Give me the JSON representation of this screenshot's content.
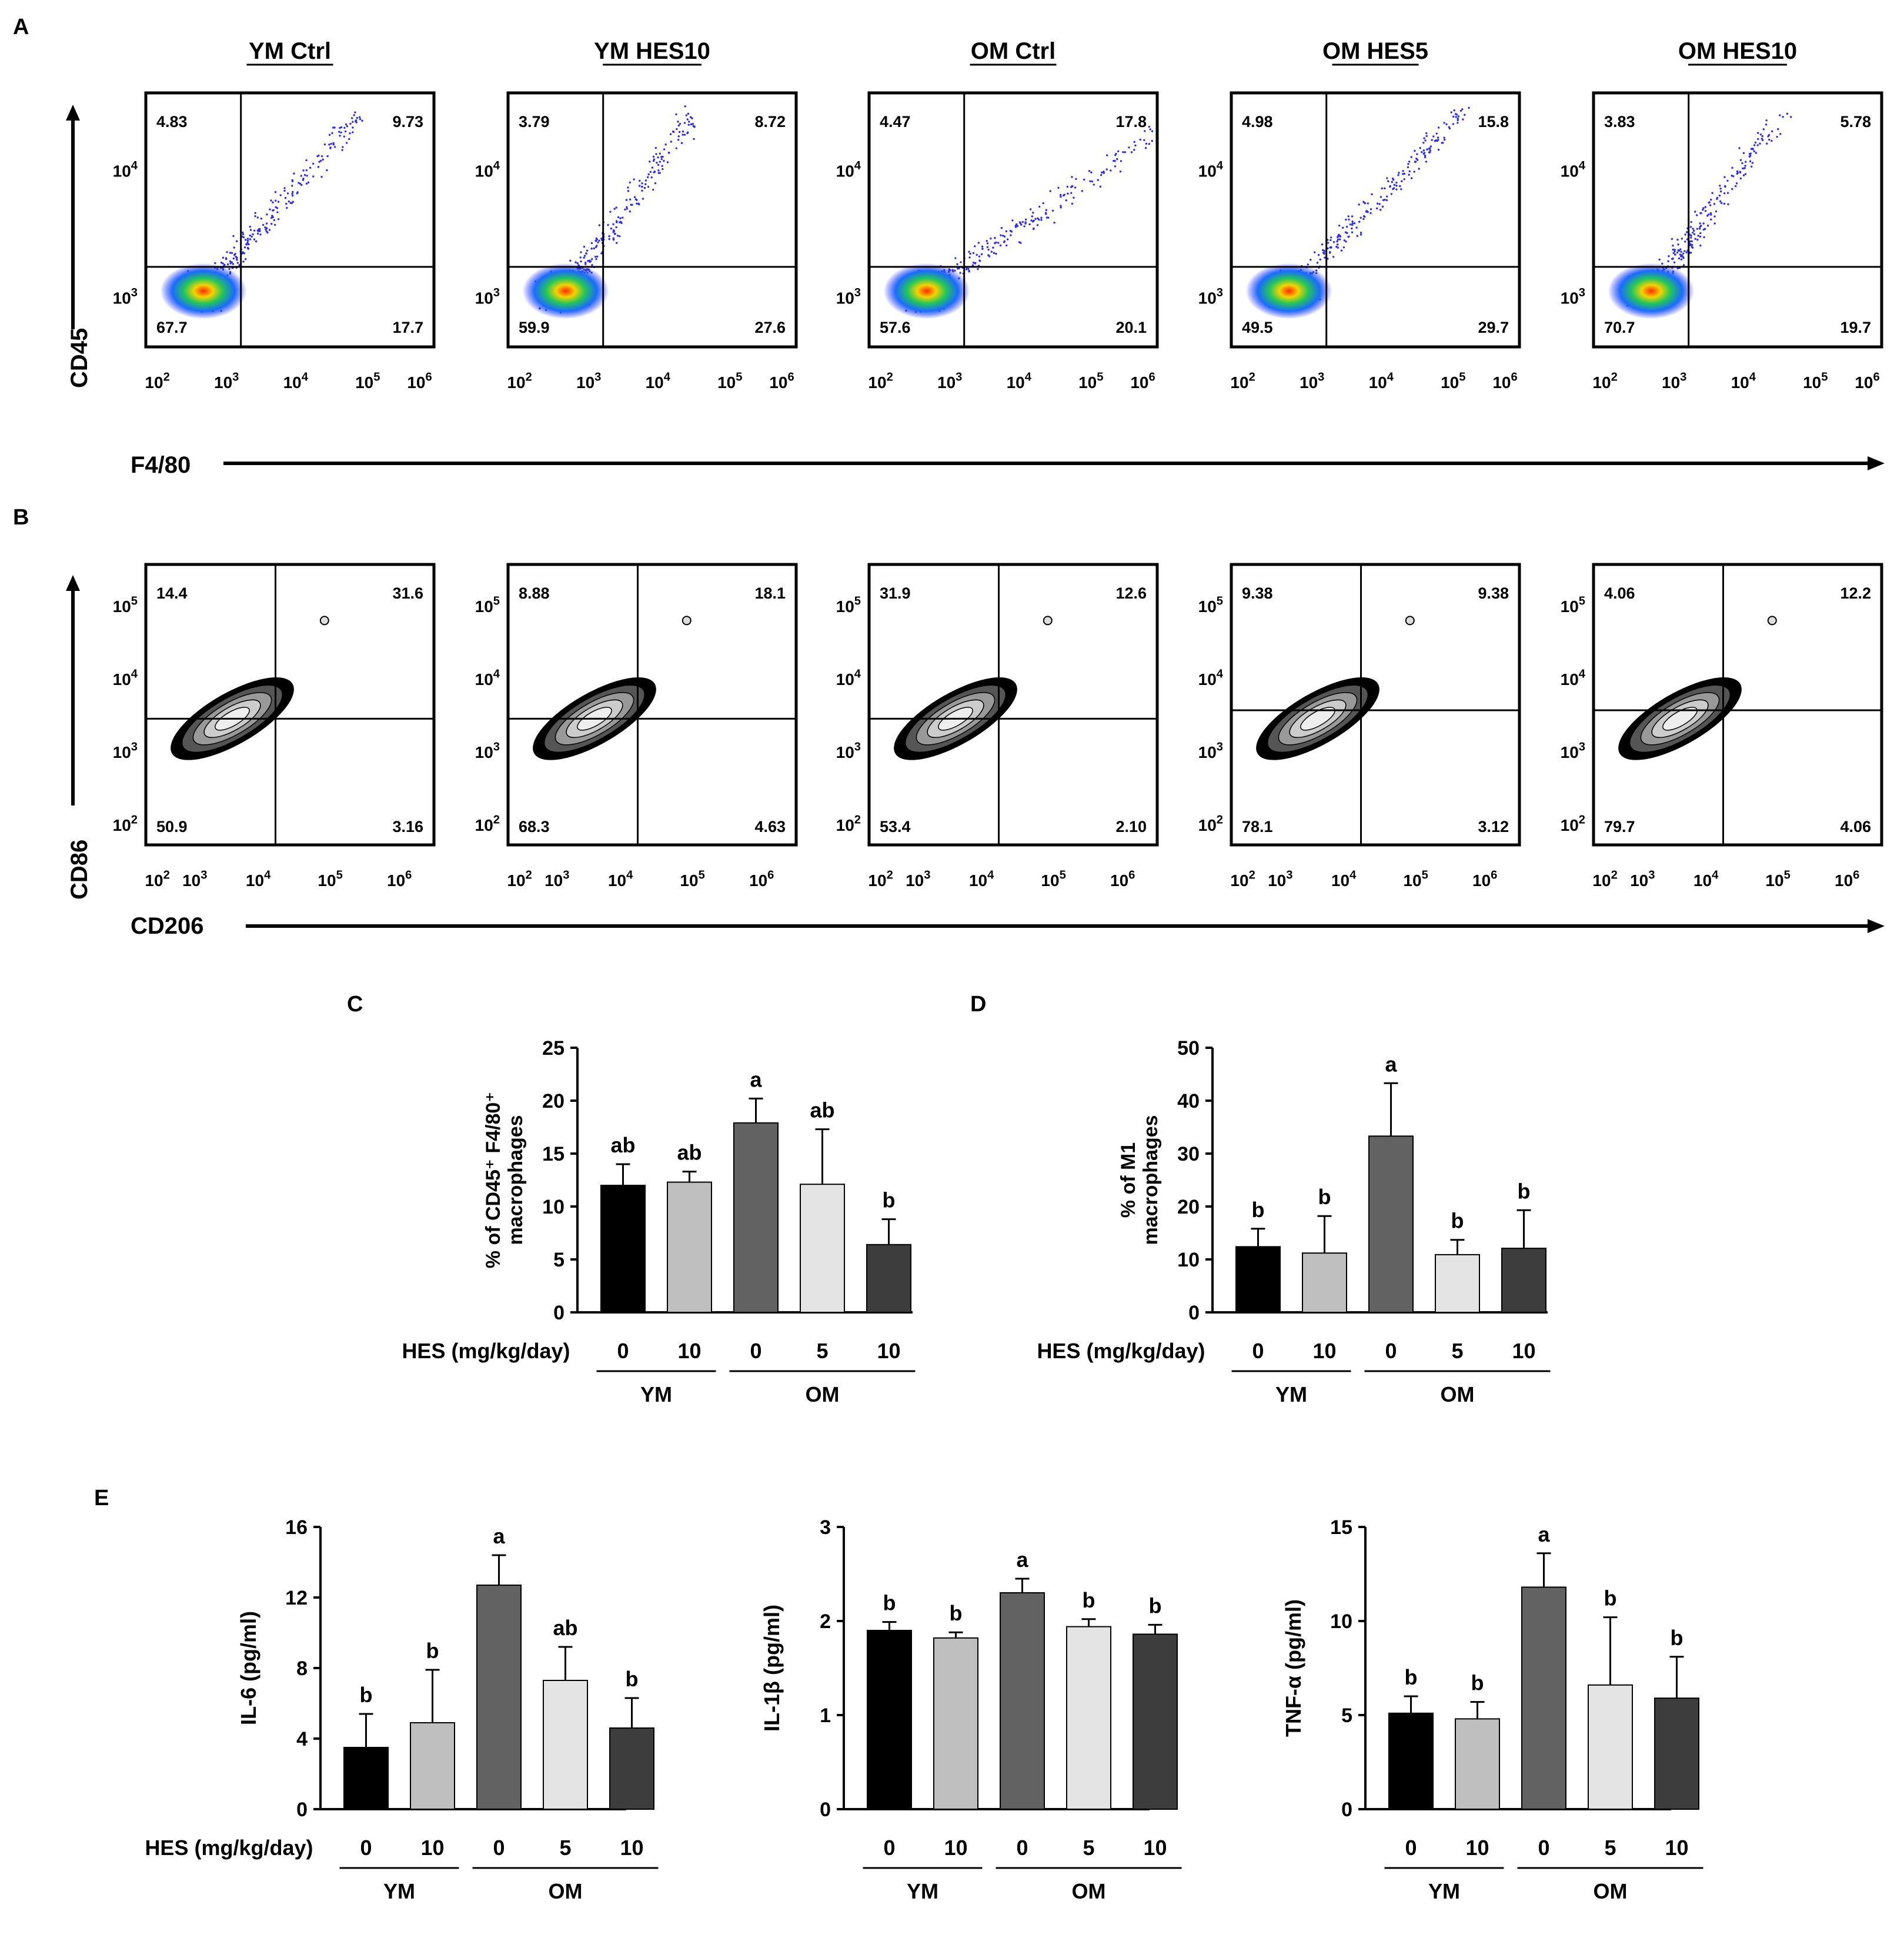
{
  "panel_letters": {
    "A": "A",
    "B": "B",
    "C": "C",
    "D": "D",
    "E": "E"
  },
  "flow_A": {
    "y_axis": "CD45",
    "x_axis": "F4/80",
    "x_ticks": [
      "10",
      "10",
      "10",
      "10",
      "10"
    ],
    "x_tick_exp": [
      "2",
      "3",
      "4",
      "5",
      "6"
    ],
    "y_ticks": [
      "10",
      "10"
    ],
    "y_tick_exp": [
      "4",
      "3"
    ],
    "panels": [
      {
        "title": "YM Ctrl",
        "ul": "4.83",
        "ur": "9.73",
        "ll": "67.7",
        "lr": "17.7"
      },
      {
        "title": "YM HES10",
        "ul": "3.79",
        "ur": "8.72",
        "ll": "59.9",
        "lr": "27.6"
      },
      {
        "title": "OM Ctrl",
        "ul": "4.47",
        "ur": "17.8",
        "ll": "57.6",
        "lr": "20.1"
      },
      {
        "title": "OM HES5",
        "ul": "4.98",
        "ur": "15.8",
        "ll": "49.5",
        "lr": "29.7"
      },
      {
        "title": "OM HES10",
        "ul": "3.83",
        "ur": "5.78",
        "ll": "70.7",
        "lr": "19.7"
      }
    ]
  },
  "flow_B": {
    "y_axis": "CD86",
    "x_axis": "CD206",
    "x_ticks": [
      "10",
      "10",
      "10",
      "10",
      "10"
    ],
    "x_tick_exp": [
      "2",
      "3",
      "4",
      "5",
      "6"
    ],
    "y_ticks": [
      "10",
      "10",
      "10",
      "10"
    ],
    "y_tick_exp": [
      "5",
      "4",
      "3",
      "2"
    ],
    "panels": [
      {
        "ul": "14.4",
        "ur": "31.6",
        "ll": "50.9",
        "lr": "3.16"
      },
      {
        "ul": "8.88",
        "ur": "18.1",
        "ll": "68.3",
        "lr": "4.63"
      },
      {
        "ul": "31.9",
        "ur": "12.6",
        "ll": "53.4",
        "lr": "2.10"
      },
      {
        "ul": "9.38",
        "ur": "9.38",
        "ll": "78.1",
        "lr": "3.12"
      },
      {
        "ul": "4.06",
        "ur": "12.2",
        "ll": "79.7",
        "lr": "4.06"
      }
    ]
  },
  "dose_label": "HES (mg/kg/day)",
  "chart_data": [
    {
      "id": "C",
      "type": "bar",
      "ylabel_line1": "% of CD45⁺ F4/80⁺",
      "ylabel_line2": "macrophages",
      "ylim": [
        0,
        25
      ],
      "yticks": [
        "0",
        "5",
        "10",
        "15",
        "20",
        "25"
      ],
      "categories": [
        "0",
        "10",
        "0",
        "5",
        "10"
      ],
      "groups": [
        "YM",
        "OM"
      ],
      "values": [
        12.0,
        12.3,
        17.9,
        12.1,
        6.4
      ],
      "errors": [
        2.0,
        1.0,
        2.3,
        5.2,
        2.4
      ],
      "letters": [
        "ab",
        "ab",
        "a",
        "ab",
        "b"
      ]
    },
    {
      "id": "D",
      "type": "bar",
      "ylabel_line1": "% of M1",
      "ylabel_line2": "macrophages",
      "ylim": [
        0,
        50
      ],
      "yticks": [
        "0",
        "10",
        "20",
        "30",
        "40",
        "50"
      ],
      "categories": [
        "0",
        "10",
        "0",
        "5",
        "10"
      ],
      "groups": [
        "YM",
        "OM"
      ],
      "values": [
        12.4,
        11.2,
        33.3,
        10.9,
        12.1
      ],
      "errors": [
        3.4,
        7.0,
        10.0,
        2.8,
        7.2
      ],
      "letters": [
        "b",
        "b",
        "a",
        "b",
        "b"
      ]
    },
    {
      "id": "E1",
      "type": "bar",
      "ylabel_line1": "IL-6 (pg/ml)",
      "ylabel_line2": "",
      "ylim": [
        0,
        16
      ],
      "yticks": [
        "0",
        "4",
        "8",
        "12",
        "16"
      ],
      "categories": [
        "0",
        "10",
        "0",
        "5",
        "10"
      ],
      "groups": [
        "YM",
        "OM"
      ],
      "values": [
        3.5,
        4.9,
        12.7,
        7.3,
        4.6
      ],
      "errors": [
        1.9,
        3.0,
        1.7,
        1.9,
        1.7
      ],
      "letters": [
        "b",
        "b",
        "a",
        "ab",
        "b"
      ]
    },
    {
      "id": "E2",
      "type": "bar",
      "ylabel_line1": "IL-1β (pg/ml)",
      "ylabel_line2": "",
      "ylim": [
        0,
        3
      ],
      "yticks": [
        "0",
        "1",
        "2",
        "3"
      ],
      "categories": [
        "0",
        "10",
        "0",
        "5",
        "10"
      ],
      "groups": [
        "YM",
        "OM"
      ],
      "values": [
        1.9,
        1.82,
        2.3,
        1.94,
        1.86
      ],
      "errors": [
        0.09,
        0.06,
        0.15,
        0.08,
        0.1
      ],
      "letters": [
        "b",
        "b",
        "a",
        "b",
        "b"
      ]
    },
    {
      "id": "E3",
      "type": "bar",
      "ylabel_line1": "TNF-α (pg/ml)",
      "ylabel_line2": "",
      "ylim": [
        0,
        15
      ],
      "yticks": [
        "0",
        "5",
        "10",
        "15"
      ],
      "categories": [
        "0",
        "10",
        "0",
        "5",
        "10"
      ],
      "groups": [
        "YM",
        "OM"
      ],
      "values": [
        5.1,
        4.8,
        11.8,
        6.6,
        5.9
      ],
      "errors": [
        0.9,
        0.9,
        1.8,
        3.6,
        2.2
      ],
      "letters": [
        "b",
        "b",
        "a",
        "b",
        "b"
      ]
    }
  ],
  "colors": {
    "bars": [
      "#000000",
      "#bfbfbf",
      "#626262",
      "#e4e4e4",
      "#3d3d3d"
    ],
    "axis": "#000000",
    "density_low": "#2222ff",
    "density_mid": "#22cc66",
    "density_high": "#ff2200"
  }
}
